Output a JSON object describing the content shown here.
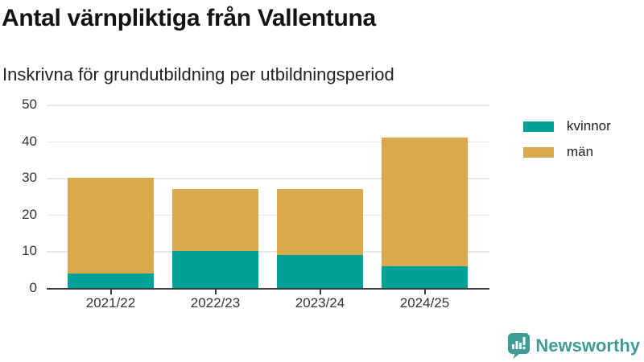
{
  "header": {
    "title": "Antal värnpliktiga från Vallentuna",
    "subtitle": "Inskrivna för grundutbildning per utbildningsperiod"
  },
  "chart_data": {
    "type": "bar",
    "stacked": true,
    "title": "Antal värnpliktiga från Vallentuna",
    "subtitle": "Inskrivna för grundutbildning per utbildningsperiod",
    "categories": [
      "2021/22",
      "2022/23",
      "2023/24",
      "2024/25"
    ],
    "series": [
      {
        "name": "kvinnor",
        "color": "#00a196",
        "values": [
          4,
          10,
          9,
          6
        ]
      },
      {
        "name": "män",
        "color": "#d9a94e",
        "values": [
          26,
          17,
          18,
          35
        ]
      }
    ],
    "stacked_totals": [
      30,
      27,
      27,
      41
    ],
    "xlabel": "",
    "ylabel": "",
    "ylim": [
      0,
      50
    ],
    "yticks": [
      0,
      10,
      20,
      30,
      40,
      50
    ],
    "grid": true,
    "legend_position": "right-top",
    "colors": {
      "axis": "#3d3d3d",
      "gridline": "#e7e7ea",
      "tick_text": "#333333",
      "background": "#ffffff"
    }
  },
  "branding": {
    "logo_text": "Newsworthy",
    "logo_color": "#3f9b95",
    "icon": "bar-chart-speech-bubble-icon"
  }
}
